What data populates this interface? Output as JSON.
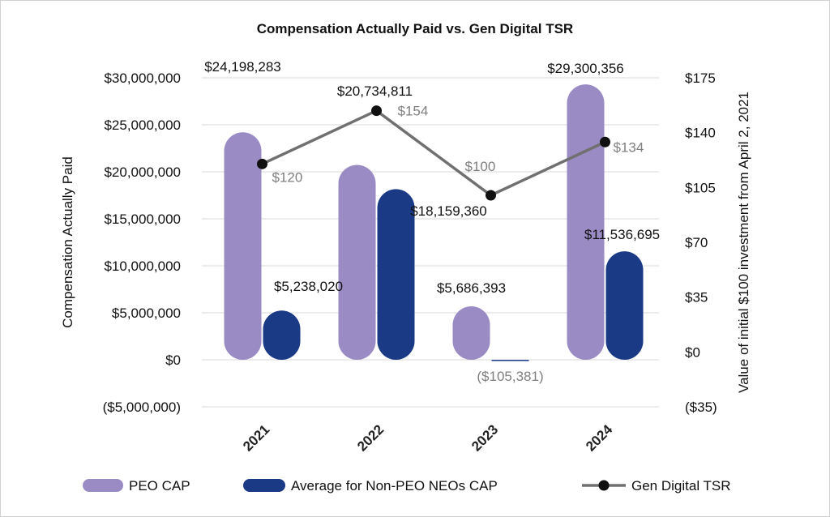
{
  "chart_data": {
    "type": "bar",
    "title": "Compensation Actually Paid vs. Gen Digital TSR",
    "categories": [
      "2021",
      "2022",
      "2023",
      "2024"
    ],
    "series": [
      {
        "name": "PEO CAP",
        "kind": "bar",
        "axis": "left",
        "color": "#9a8bc4",
        "values": [
          24198283,
          20734811,
          5686393,
          29300356
        ],
        "labels": [
          "$24,198,283",
          "$20,734,811",
          "$5,686,393",
          "$29,300,356"
        ]
      },
      {
        "name": "Average for Non-PEO NEOs CAP",
        "kind": "bar",
        "axis": "left",
        "color": "#1b3a86",
        "values": [
          5238020,
          18159360,
          -105381,
          11536695
        ],
        "labels": [
          "$5,238,020",
          "$18,159,360",
          "($105,381)",
          "$11,536,695"
        ]
      },
      {
        "name": "Gen Digital TSR",
        "kind": "line",
        "axis": "right",
        "color": "#707070",
        "marker_color": "#111111",
        "values": [
          120,
          154,
          100,
          134
        ],
        "labels": [
          "$120",
          "$154",
          "$100",
          "$134"
        ]
      }
    ],
    "ylabel": "Compensation Actually Paid",
    "ylabel_right": "Value of initial $100 investment from April 2, 2021",
    "ylim": [
      -5000000,
      30000000
    ],
    "ylim_right": [
      -35,
      175
    ],
    "yticks": [
      "$30,000,000",
      "$25,000,000",
      "$20,000,000",
      "$15,000,000",
      "$10,000,000",
      "$5,000,000",
      "$0",
      "($5,000,000)"
    ],
    "yticks_right": [
      "$175",
      "$140",
      "$105",
      "$70",
      "$35",
      "$0",
      "($35)"
    ],
    "grid": true,
    "legend_position": "bottom"
  }
}
